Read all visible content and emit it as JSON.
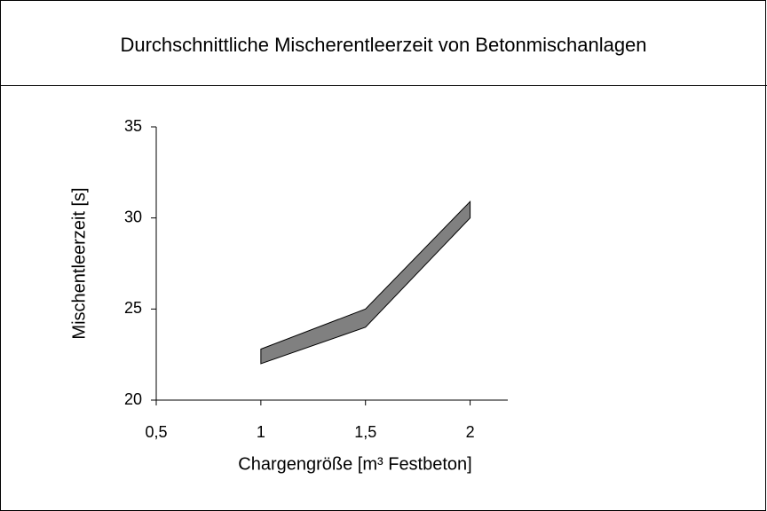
{
  "chart_data": {
    "type": "band",
    "title": "Durchschnittliche Mischerentleerzeit von Betonmischanlagen",
    "x_label": "Chargengröße [m³ Festbeton]",
    "y_label": "Mischentleerzeit [s]",
    "x": [
      1,
      1.5,
      2
    ],
    "values_low": [
      22,
      24,
      30
    ],
    "values_high": [
      22.8,
      25,
      30.9
    ],
    "color": "#808080",
    "xlim": [
      0.5,
      2.18
    ],
    "xticks": [
      {
        "value": 0.5,
        "label": "0,5"
      },
      1,
      {
        "value": 1.5,
        "label": "1,5"
      },
      2
    ],
    "ylim": [
      20,
      35
    ],
    "yticks": [
      20,
      25,
      30,
      35
    ]
  }
}
